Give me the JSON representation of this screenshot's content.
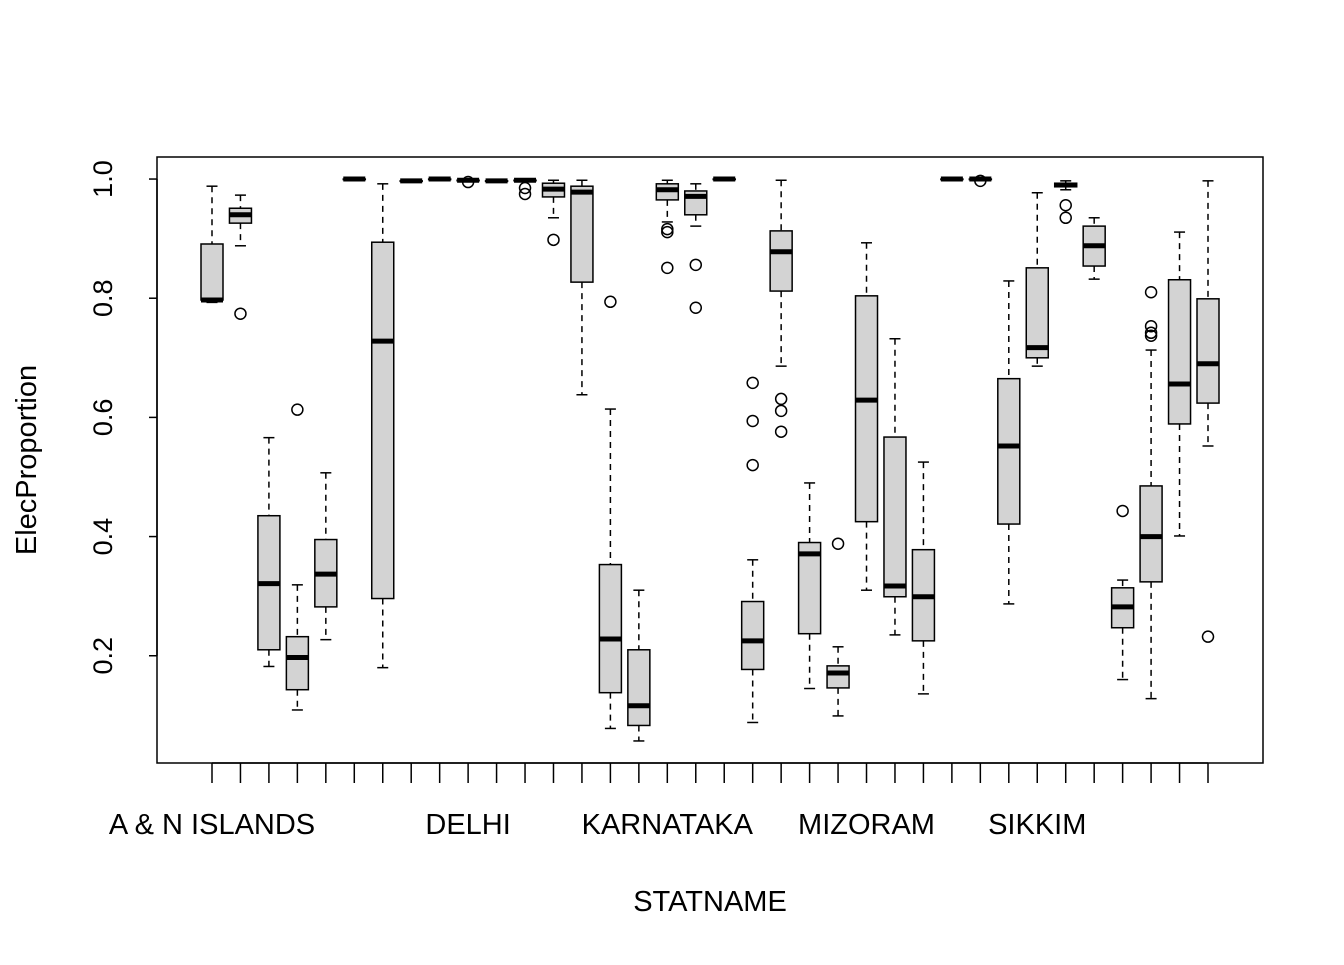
{
  "chart_data": {
    "type": "boxplot",
    "title": "",
    "xlabel": "STATNAME",
    "ylabel": "ElecProportion",
    "ylim": [
      0.02,
      1.037
    ],
    "yticks": [
      0.2,
      0.4,
      0.6,
      0.8,
      1.0
    ],
    "ytick_labels": [
      "0.2",
      "0.4",
      "0.6",
      "0.8",
      "1.0"
    ],
    "grid": false,
    "box_fill": "#d3d3d3",
    "categories": [
      "A & N ISLANDS",
      "",
      "",
      "",
      "",
      "",
      "",
      "",
      "",
      "DELHI",
      "",
      "",
      "",
      "",
      "",
      "",
      "KARNATAKA",
      "",
      "",
      "",
      "",
      "",
      "",
      "MIZORAM",
      "",
      "",
      "",
      "",
      "",
      "SIKKIM",
      "",
      "",
      "",
      "",
      "",
      ""
    ],
    "boxes": [
      {
        "lo": 0.793,
        "q1": 0.797,
        "med": 0.797,
        "q3": 0.891,
        "hi": 0.988,
        "out": []
      },
      {
        "lo": 0.888,
        "q1": 0.926,
        "med": 0.94,
        "q3": 0.951,
        "hi": 0.973,
        "out": [
          0.774
        ]
      },
      {
        "lo": 0.182,
        "q1": 0.21,
        "med": 0.321,
        "q3": 0.435,
        "hi": 0.566,
        "out": []
      },
      {
        "lo": 0.109,
        "q1": 0.143,
        "med": 0.197,
        "q3": 0.232,
        "hi": 0.319,
        "out": [
          0.613
        ]
      },
      {
        "lo": 0.227,
        "q1": 0.282,
        "med": 0.337,
        "q3": 0.395,
        "hi": 0.507,
        "out": []
      },
      {
        "lo": 1.0,
        "q1": 1.0,
        "med": 1.0,
        "q3": 1.0,
        "hi": 1.0,
        "out": []
      },
      {
        "lo": 0.18,
        "q1": 0.296,
        "med": 0.728,
        "q3": 0.894,
        "hi": 0.992,
        "out": []
      },
      {
        "lo": 0.997,
        "q1": 0.997,
        "med": 0.997,
        "q3": 0.997,
        "hi": 0.997,
        "out": []
      },
      {
        "lo": 1.0,
        "q1": 1.0,
        "med": 1.0,
        "q3": 1.0,
        "hi": 1.0,
        "out": []
      },
      {
        "lo": 0.998,
        "q1": 0.998,
        "med": 0.998,
        "q3": 0.998,
        "hi": 0.998,
        "out": [
          0.995
        ]
      },
      {
        "lo": 0.997,
        "q1": 0.997,
        "med": 0.997,
        "q3": 0.997,
        "hi": 0.997,
        "out": []
      },
      {
        "lo": 0.998,
        "q1": 0.998,
        "med": 0.998,
        "q3": 0.998,
        "hi": 0.998,
        "out": [
          0.985,
          0.975
        ]
      },
      {
        "lo": 0.935,
        "q1": 0.97,
        "med": 0.983,
        "q3": 0.993,
        "hi": 0.998,
        "out": [
          0.898
        ]
      },
      {
        "lo": 0.638,
        "q1": 0.827,
        "med": 0.978,
        "q3": 0.988,
        "hi": 0.998,
        "out": []
      },
      {
        "lo": 0.078,
        "q1": 0.138,
        "med": 0.228,
        "q3": 0.353,
        "hi": 0.614,
        "out": [
          0.794
        ]
      },
      {
        "lo": 0.057,
        "q1": 0.083,
        "med": 0.116,
        "q3": 0.21,
        "hi": 0.31,
        "out": []
      },
      {
        "lo": 0.928,
        "q1": 0.965,
        "med": 0.982,
        "q3": 0.992,
        "hi": 0.998,
        "out": [
          0.916,
          0.911,
          0.851
        ]
      },
      {
        "lo": 0.921,
        "q1": 0.94,
        "med": 0.971,
        "q3": 0.98,
        "hi": 0.992,
        "out": [
          0.856,
          0.784
        ]
      },
      {
        "lo": 1.0,
        "q1": 1.0,
        "med": 1.0,
        "q3": 1.0,
        "hi": 1.0,
        "out": []
      },
      {
        "lo": 0.088,
        "q1": 0.177,
        "med": 0.225,
        "q3": 0.291,
        "hi": 0.361,
        "out": [
          0.658,
          0.594,
          0.52
        ]
      },
      {
        "lo": 0.686,
        "q1": 0.812,
        "med": 0.878,
        "q3": 0.913,
        "hi": 0.998,
        "out": [
          0.631,
          0.611,
          0.576
        ]
      },
      {
        "lo": 0.145,
        "q1": 0.237,
        "med": 0.371,
        "q3": 0.39,
        "hi": 0.49,
        "out": []
      },
      {
        "lo": 0.099,
        "q1": 0.146,
        "med": 0.171,
        "q3": 0.183,
        "hi": 0.215,
        "out": [
          0.388
        ]
      },
      {
        "lo": 0.31,
        "q1": 0.425,
        "med": 0.629,
        "q3": 0.804,
        "hi": 0.893,
        "out": []
      },
      {
        "lo": 0.235,
        "q1": 0.299,
        "med": 0.317,
        "q3": 0.567,
        "hi": 0.732,
        "out": []
      },
      {
        "lo": 0.136,
        "q1": 0.225,
        "med": 0.299,
        "q3": 0.378,
        "hi": 0.525,
        "out": []
      },
      {
        "lo": 1.0,
        "q1": 1.0,
        "med": 1.0,
        "q3": 1.0,
        "hi": 1.0,
        "out": []
      },
      {
        "lo": 1.0,
        "q1": 1.0,
        "med": 1.0,
        "q3": 1.0,
        "hi": 1.0,
        "out": [
          0.997
        ]
      },
      {
        "lo": 0.287,
        "q1": 0.421,
        "med": 0.552,
        "q3": 0.665,
        "hi": 0.829,
        "out": []
      },
      {
        "lo": 0.686,
        "q1": 0.7,
        "med": 0.717,
        "q3": 0.851,
        "hi": 0.977,
        "out": []
      },
      {
        "lo": 0.982,
        "q1": 0.987,
        "med": 0.99,
        "q3": 0.993,
        "hi": 0.997,
        "out": [
          0.956,
          0.935
        ]
      },
      {
        "lo": 0.832,
        "q1": 0.854,
        "med": 0.888,
        "q3": 0.921,
        "hi": 0.935,
        "out": []
      },
      {
        "lo": 0.16,
        "q1": 0.247,
        "med": 0.282,
        "q3": 0.314,
        "hi": 0.327,
        "out": [
          0.443
        ]
      },
      {
        "lo": 0.128,
        "q1": 0.324,
        "med": 0.4,
        "q3": 0.485,
        "hi": 0.713,
        "out": [
          0.81,
          0.753,
          0.742,
          0.737
        ]
      },
      {
        "lo": 0.401,
        "q1": 0.589,
        "med": 0.656,
        "q3": 0.831,
        "hi": 0.911,
        "out": []
      },
      {
        "lo": 0.552,
        "q1": 0.624,
        "med": 0.69,
        "q3": 0.799,
        "hi": 0.997,
        "out": [
          0.232
        ]
      }
    ]
  }
}
